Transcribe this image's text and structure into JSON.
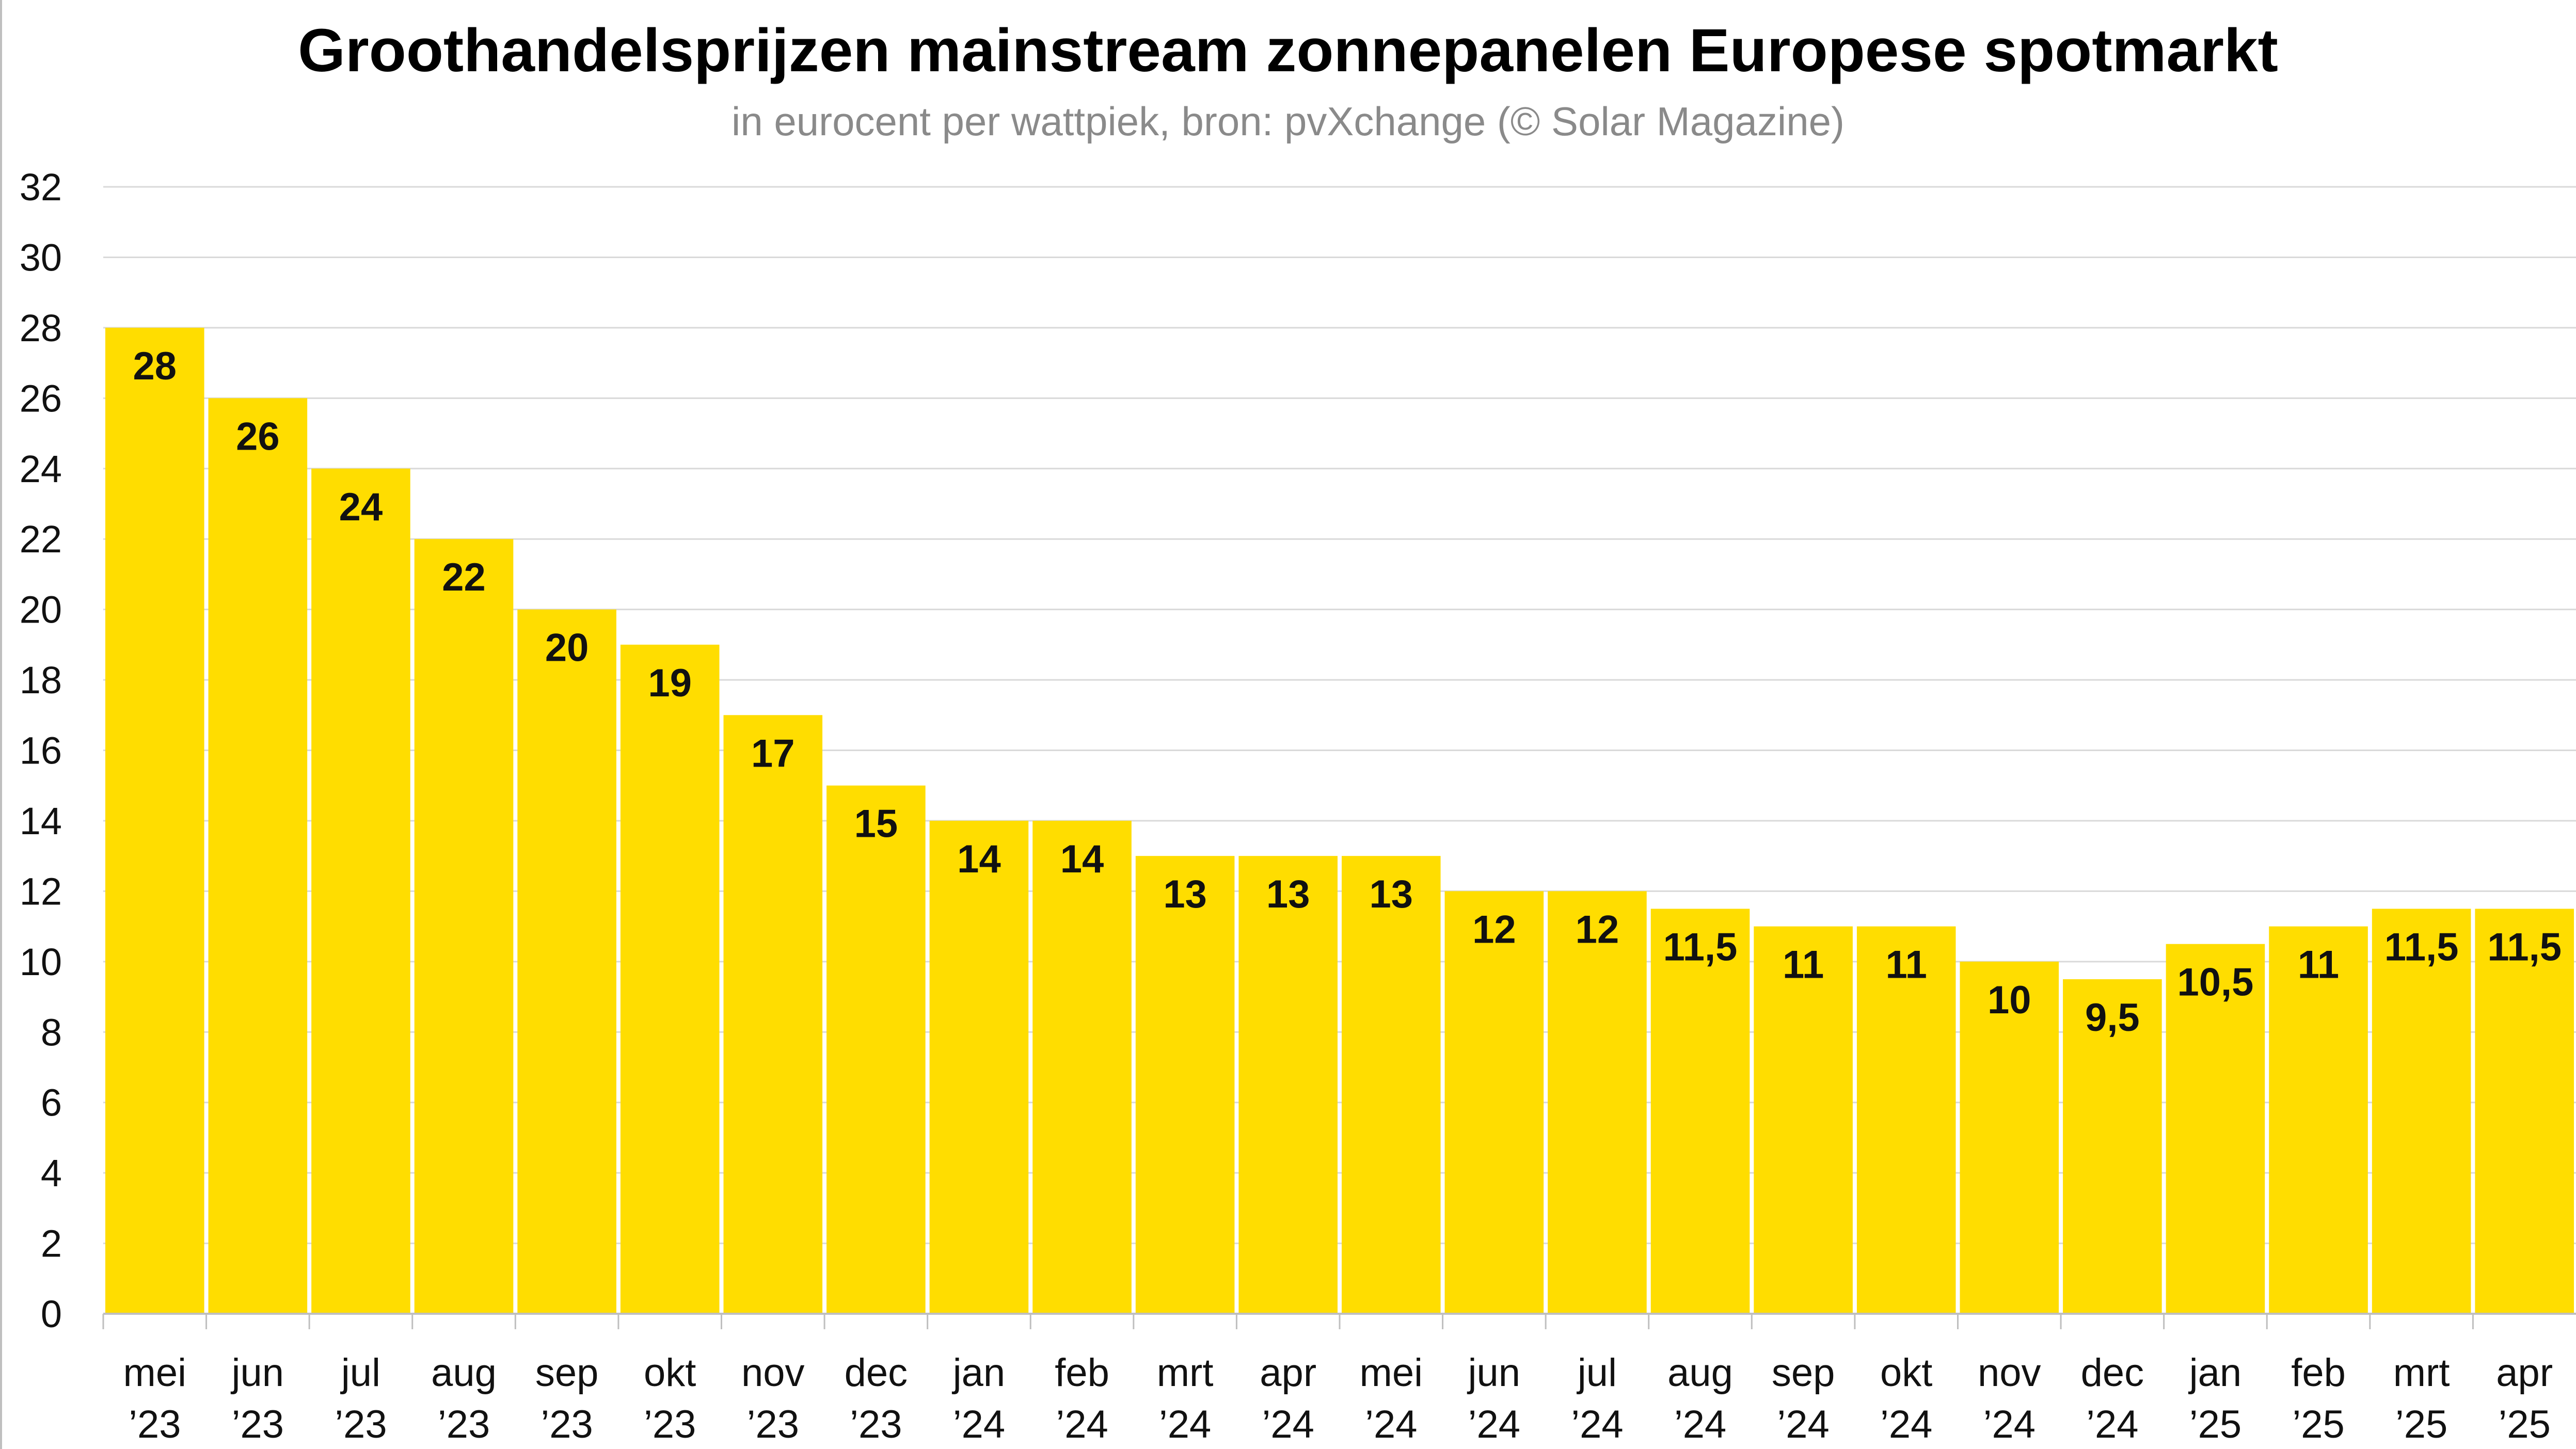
{
  "chart_data": {
    "type": "bar",
    "title": "Groothandelsprijzen mainstream zonnepanelen Europese spotmarkt",
    "subtitle": "in eurocent per wattpiek, bron: pvXchange (© Solar Magazine)",
    "xlabel": "",
    "ylabel": "",
    "categories": [
      [
        "mei",
        "’23"
      ],
      [
        "jun",
        "’23"
      ],
      [
        "jul",
        "’23"
      ],
      [
        "aug",
        "’23"
      ],
      [
        "sep",
        "’23"
      ],
      [
        "okt",
        "’23"
      ],
      [
        "nov",
        "’23"
      ],
      [
        "dec",
        "’23"
      ],
      [
        "jan",
        "’24"
      ],
      [
        "feb",
        "’24"
      ],
      [
        "mrt",
        "’24"
      ],
      [
        "apr",
        "’24"
      ],
      [
        "mei",
        "’24"
      ],
      [
        "jun",
        "’24"
      ],
      [
        "jul",
        "’24"
      ],
      [
        "aug",
        "’24"
      ],
      [
        "sep",
        "’24"
      ],
      [
        "okt",
        "’24"
      ],
      [
        "nov",
        "’24"
      ],
      [
        "dec",
        "’24"
      ],
      [
        "jan",
        "’25"
      ],
      [
        "feb",
        "’25"
      ],
      [
        "mrt",
        "’25"
      ],
      [
        "apr",
        "’25"
      ]
    ],
    "values": [
      28,
      26,
      24,
      22,
      20,
      19,
      17,
      15,
      14,
      14,
      13,
      13,
      13,
      12,
      12,
      11.5,
      11,
      11,
      10,
      9.5,
      10.5,
      11,
      11.5,
      11.5
    ],
    "data_labels": [
      "28",
      "26",
      "24",
      "22",
      "20",
      "19",
      "17",
      "15",
      "14",
      "14",
      "13",
      "13",
      "13",
      "12",
      "12",
      "11,5",
      "11",
      "11",
      "10",
      "9,5",
      "10,5",
      "11",
      "11,5",
      "11,5"
    ],
    "yticks": [
      "0",
      "2",
      "4",
      "6",
      "8",
      "10",
      "12",
      "14",
      "16",
      "18",
      "20",
      "22",
      "24",
      "26",
      "28",
      "30",
      "32"
    ],
    "ylim": [
      0,
      32
    ],
    "grid": true,
    "legend": "none",
    "colors": {
      "bar": "#FFDD00",
      "grid": "#d9d9d9",
      "axis": "#bfbfbf",
      "text": "#111111",
      "subtitle": "#8a8a8a"
    }
  }
}
